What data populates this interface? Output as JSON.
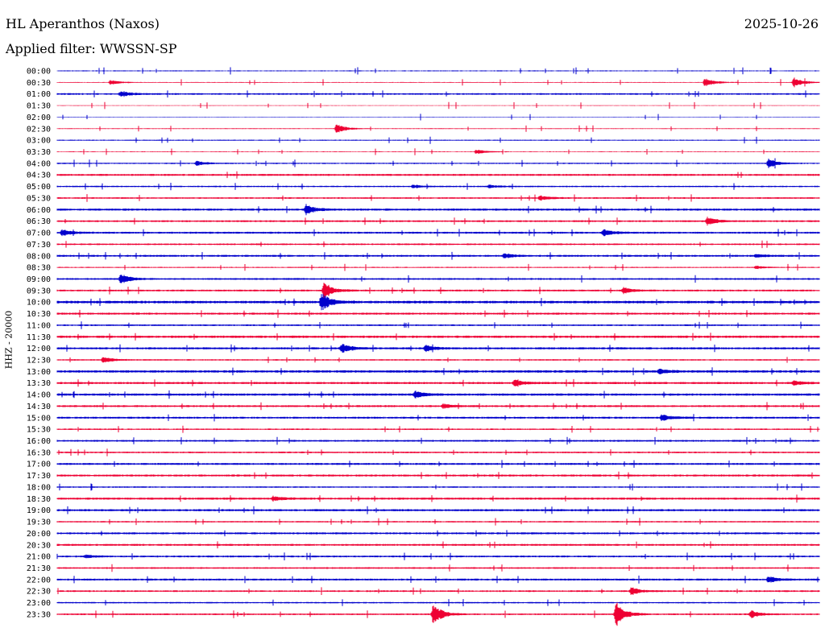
{
  "header": {
    "station_title": "HL Aperanthos (Naxos)",
    "date": "2025-10-26",
    "filter_prefix": "Applied filter:",
    "filter_name": "WWSSN-SP"
  },
  "chart_data": {
    "type": "line",
    "title": "HL Aperanthos (Naxos)",
    "ylabel": "HHZ - 20000",
    "row_labels": [
      "00:00",
      "00:30",
      "01:00",
      "01:30",
      "02:00",
      "02:30",
      "03:00",
      "03:30",
      "04:00",
      "04:30",
      "05:00",
      "05:30",
      "06:00",
      "06:30",
      "07:00",
      "07:30",
      "08:00",
      "08:30",
      "09:00",
      "09:30",
      "10:00",
      "10:30",
      "11:00",
      "11:30",
      "12:00",
      "12:30",
      "13:00",
      "13:30",
      "14:00",
      "14:30",
      "15:00",
      "15:30",
      "16:00",
      "16:30",
      "17:00",
      "17:30",
      "18:00",
      "18:30",
      "19:00",
      "19:30",
      "20:00",
      "20:30",
      "21:00",
      "21:30",
      "22:00",
      "22:30",
      "23:00",
      "23:30"
    ],
    "row_interval_minutes": 30,
    "series_colors": [
      "#0000cc",
      "#ee0033"
    ],
    "noise_level": [
      0.6,
      0.5,
      1.0,
      0.4,
      0.4,
      0.5,
      0.7,
      0.5,
      0.8,
      1.2,
      0.9,
      1.0,
      1.3,
      1.1,
      1.2,
      1.0,
      1.2,
      0.7,
      1.1,
      1.1,
      1.6,
      1.2,
      1.0,
      1.4,
      1.3,
      0.9,
      1.5,
      1.3,
      1.4,
      1.2,
      1.2,
      0.9,
      1.1,
      1.0,
      1.2,
      1.2,
      0.9,
      1.3,
      1.3,
      0.9,
      1.2,
      1.2,
      1.1,
      1.0,
      1.2,
      1.0,
      0.9,
      1.0
    ],
    "events": [
      {
        "row": 1,
        "minute": 25.5,
        "amplitude": 6
      },
      {
        "row": 1,
        "minute": 29.0,
        "amplitude": 7
      },
      {
        "row": 1,
        "minute": 2.1,
        "amplitude": 3
      },
      {
        "row": 2,
        "minute": 2.5,
        "amplitude": 4
      },
      {
        "row": 5,
        "minute": 11.0,
        "amplitude": 6
      },
      {
        "row": 7,
        "minute": 16.5,
        "amplitude": 3
      },
      {
        "row": 8,
        "minute": 5.5,
        "amplitude": 3
      },
      {
        "row": 8,
        "minute": 28.0,
        "amplitude": 6
      },
      {
        "row": 10,
        "minute": 14.0,
        "amplitude": 2
      },
      {
        "row": 10,
        "minute": 17.0,
        "amplitude": 2
      },
      {
        "row": 11,
        "minute": 19.0,
        "amplitude": 3
      },
      {
        "row": 12,
        "minute": 9.8,
        "amplitude": 6
      },
      {
        "row": 13,
        "minute": 25.6,
        "amplitude": 5
      },
      {
        "row": 14,
        "minute": 0.2,
        "amplitude": 4
      },
      {
        "row": 14,
        "minute": 21.5,
        "amplitude": 4
      },
      {
        "row": 16,
        "minute": 17.6,
        "amplitude": 3
      },
      {
        "row": 16,
        "minute": 27.5,
        "amplitude": 2
      },
      {
        "row": 17,
        "minute": 27.5,
        "amplitude": 2
      },
      {
        "row": 18,
        "minute": 2.5,
        "amplitude": 7
      },
      {
        "row": 19,
        "minute": 10.5,
        "amplitude": 9
      },
      {
        "row": 19,
        "minute": 22.3,
        "amplitude": 4
      },
      {
        "row": 20,
        "minute": 10.4,
        "amplitude": 11
      },
      {
        "row": 24,
        "minute": 11.2,
        "amplitude": 6
      },
      {
        "row": 24,
        "minute": 14.5,
        "amplitude": 4
      },
      {
        "row": 25,
        "minute": 1.8,
        "amplitude": 4
      },
      {
        "row": 26,
        "minute": 23.7,
        "amplitude": 3
      },
      {
        "row": 27,
        "minute": 18.0,
        "amplitude": 4
      },
      {
        "row": 27,
        "minute": 29.0,
        "amplitude": 3
      },
      {
        "row": 28,
        "minute": 14.1,
        "amplitude": 4
      },
      {
        "row": 29,
        "minute": 15.2,
        "amplitude": 3
      },
      {
        "row": 30,
        "minute": 23.8,
        "amplitude": 4
      },
      {
        "row": 37,
        "minute": 8.5,
        "amplitude": 3
      },
      {
        "row": 42,
        "minute": 1.1,
        "amplitude": 2
      },
      {
        "row": 44,
        "minute": 28.0,
        "amplitude": 4
      },
      {
        "row": 45,
        "minute": 22.6,
        "amplitude": 5
      },
      {
        "row": 47,
        "minute": 14.8,
        "amplitude": 14
      },
      {
        "row": 47,
        "minute": 22.0,
        "amplitude": 16
      },
      {
        "row": 47,
        "minute": 27.3,
        "amplitude": 5
      }
    ]
  }
}
